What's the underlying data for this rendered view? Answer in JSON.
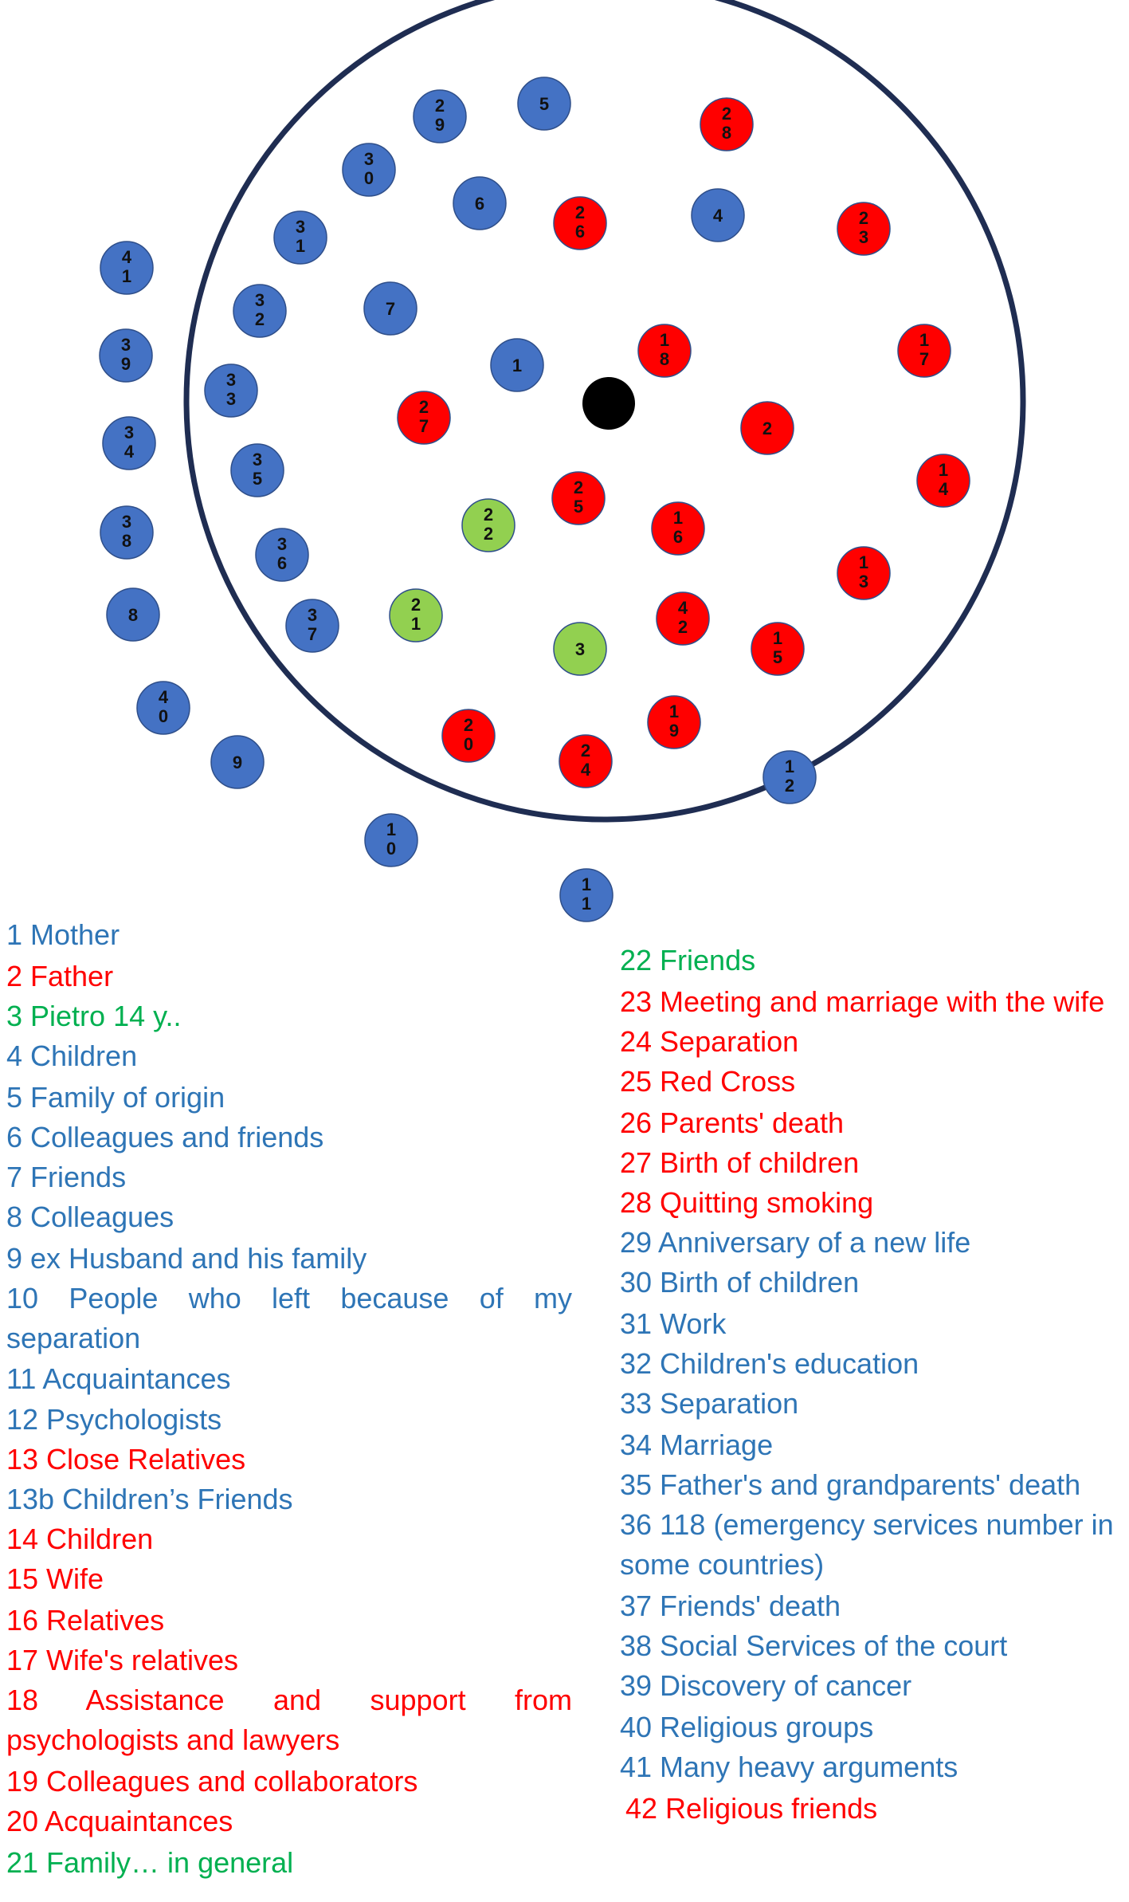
{
  "colors": {
    "blue": "#4472c4",
    "red": "#ff0000",
    "green": "#92d050",
    "outline": "#1f2d52",
    "legend_blue": "#2e75b6",
    "legend_red": "#ff0000",
    "legend_green": "#00b050",
    "center": "#000000"
  },
  "nodes": [
    {
      "id": "29",
      "color": "blue"
    },
    {
      "id": "5",
      "color": "blue"
    },
    {
      "id": "28",
      "color": "red"
    },
    {
      "id": "30",
      "color": "blue"
    },
    {
      "id": "6",
      "color": "blue"
    },
    {
      "id": "26",
      "color": "red"
    },
    {
      "id": "4",
      "color": "blue"
    },
    {
      "id": "23",
      "color": "red"
    },
    {
      "id": "31",
      "color": "blue"
    },
    {
      "id": "41",
      "color": "blue"
    },
    {
      "id": "32",
      "color": "blue"
    },
    {
      "id": "7",
      "color": "blue"
    },
    {
      "id": "18",
      "color": "red"
    },
    {
      "id": "17",
      "color": "red"
    },
    {
      "id": "39",
      "color": "blue"
    },
    {
      "id": "33",
      "color": "blue"
    },
    {
      "id": "1",
      "color": "blue"
    },
    {
      "id": "27",
      "color": "red"
    },
    {
      "id": "2",
      "color": "red"
    },
    {
      "id": "34",
      "color": "blue"
    },
    {
      "id": "35",
      "color": "blue"
    },
    {
      "id": "14",
      "color": "red"
    },
    {
      "id": "25",
      "color": "red"
    },
    {
      "id": "22",
      "color": "green"
    },
    {
      "id": "16",
      "color": "red"
    },
    {
      "id": "38",
      "color": "blue"
    },
    {
      "id": "36",
      "color": "blue"
    },
    {
      "id": "13",
      "color": "red"
    },
    {
      "id": "8",
      "color": "blue"
    },
    {
      "id": "21",
      "color": "green"
    },
    {
      "id": "37",
      "color": "blue"
    },
    {
      "id": "42",
      "color": "red"
    },
    {
      "id": "15",
      "color": "red"
    },
    {
      "id": "3",
      "color": "green"
    },
    {
      "id": "40",
      "color": "blue"
    },
    {
      "id": "19",
      "color": "red"
    },
    {
      "id": "9",
      "color": "blue"
    },
    {
      "id": "20",
      "color": "red"
    },
    {
      "id": "24",
      "color": "red"
    },
    {
      "id": "12",
      "color": "blue"
    },
    {
      "id": "10",
      "color": "blue"
    },
    {
      "id": "11",
      "color": "blue"
    }
  ],
  "legend_left": [
    {
      "text": "1 Mother",
      "color": "blue"
    },
    {
      "text": "2 Father",
      "color": "red"
    },
    {
      "text": "3 Pietro 14 y..",
      "color": "green"
    },
    {
      "text": "4 Children",
      "color": "blue"
    },
    {
      "text": "5 Family of origin",
      "color": "blue"
    },
    {
      "text": "6 Colleagues and friends",
      "color": "blue"
    },
    {
      "text": "7 Friends",
      "color": "blue"
    },
    {
      "text": "8 Colleagues",
      "color": "blue"
    },
    {
      "text": "9 ex Husband and his family",
      "color": "blue"
    },
    {
      "text": "10 People who left because of my separation",
      "color": "blue"
    },
    {
      "text": "11 Acquaintances",
      "color": "blue"
    },
    {
      "text": "12 Psychologists",
      "color": "blue"
    },
    {
      "text": "13 Close Relatives",
      "color": "red"
    },
    {
      "text": "13b Children’s Friends",
      "color": "blue"
    },
    {
      "text": "14 Children",
      "color": "red"
    },
    {
      "text": "15 Wife",
      "color": "red"
    },
    {
      "text": "16 Relatives",
      "color": "red"
    },
    {
      "text": "17 Wife's relatives",
      "color": "red"
    },
    {
      "text": "18 Assistance and support from psychologists and lawyers",
      "color": "red"
    },
    {
      "text": "19 Colleagues and collaborators",
      "color": "red"
    },
    {
      "text": "20 Acquaintances",
      "color": "red"
    },
    {
      "text": "21 Family… in general",
      "color": "green"
    }
  ],
  "legend_right": [
    {
      "text": "22 Friends",
      "color": "green"
    },
    {
      "text": "23 Meeting and marriage with the wife",
      "color": "red"
    },
    {
      "text": "24 Separation",
      "color": "red"
    },
    {
      "text": "25 Red Cross",
      "color": "red"
    },
    {
      "text": "26 Parents' death",
      "color": "red"
    },
    {
      "text": "27 Birth of children",
      "color": "red"
    },
    {
      "text": "28 Quitting smoking",
      "color": "red"
    },
    {
      "text": "29 Anniversary of a new life",
      "color": "blue"
    },
    {
      "text": "30 Birth of children",
      "color": "blue"
    },
    {
      "text": "31 Work",
      "color": "blue"
    },
    {
      "text": "32 Children's education",
      "color": "blue"
    },
    {
      "text": "33 Separation",
      "color": "blue"
    },
    {
      "text": "34 Marriage",
      "color": "blue"
    },
    {
      "text": "35 Father's and grandparents' death",
      "color": "blue"
    },
    {
      "text": "36 118 (emergency services number in some countries)",
      "color": "blue"
    },
    {
      "text": "37 Friends' death",
      "color": "blue"
    },
    {
      "text": "38 Social Services of the court",
      "color": "blue"
    },
    {
      "text": "39 Discovery of cancer",
      "color": "blue"
    },
    {
      "text": "40 Religious groups",
      "color": "blue"
    },
    {
      "text": "41 Many heavy arguments",
      "color": "blue"
    },
    {
      "text": "42 Religious friends",
      "color": "red"
    }
  ]
}
